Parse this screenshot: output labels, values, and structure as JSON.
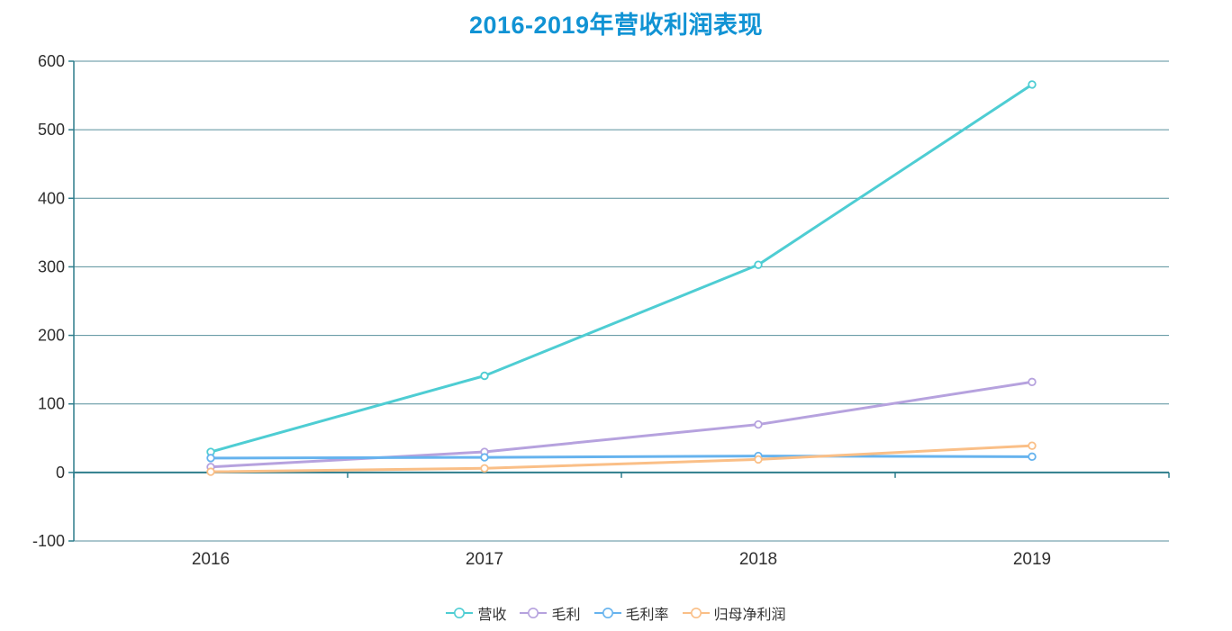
{
  "title": "2016-2019年营收利润表现",
  "title_color": "#1193d4",
  "chart_data": {
    "type": "line",
    "categories": [
      "2016",
      "2017",
      "2018",
      "2019"
    ],
    "series": [
      {
        "name": "营收",
        "color": "#4ecdd3",
        "values": [
          30,
          141,
          303,
          566
        ]
      },
      {
        "name": "毛利",
        "color": "#b6a2de",
        "values": [
          8,
          30,
          70,
          132
        ]
      },
      {
        "name": "毛利率",
        "color": "#66b3ee",
        "values": [
          21,
          22,
          24,
          23
        ]
      },
      {
        "name": "归母净利润",
        "color": "#fabf87",
        "values": [
          1,
          6,
          19,
          39
        ]
      }
    ],
    "title": "2016-2019年营收利润表现",
    "xlabel": "",
    "ylabel": "",
    "ylim": [
      -100,
      600
    ],
    "ytick_step": 100,
    "ytick_labels": [
      "-100",
      "0",
      "100",
      "200",
      "300",
      "400",
      "500",
      "600"
    ],
    "grid": true,
    "legend_position": "bottom",
    "axis_color": "#2e7d8c",
    "grid_color": "#578f9c",
    "tick_label_color": "#303030",
    "marker": "hollow-circle"
  }
}
